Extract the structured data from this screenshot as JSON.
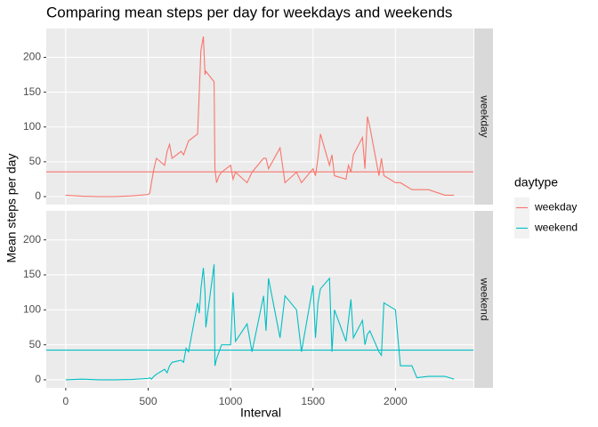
{
  "chart_data": {
    "type": "line",
    "title": "Comparing mean steps per day for weekdays and weekends",
    "x_label": "Interval",
    "y_label": "Mean steps per day",
    "legend_title": "daytype",
    "x": [
      0,
      100,
      200,
      300,
      400,
      500,
      510,
      520,
      535,
      550,
      600,
      615,
      630,
      645,
      700,
      715,
      730,
      745,
      800,
      810,
      820,
      835,
      845,
      850,
      900,
      905,
      915,
      930,
      945,
      1000,
      1015,
      1030,
      1100,
      1130,
      1200,
      1215,
      1230,
      1300,
      1330,
      1400,
      1430,
      1500,
      1515,
      1530,
      1545,
      1600,
      1615,
      1630,
      1700,
      1715,
      1730,
      1745,
      1800,
      1815,
      1830,
      1845,
      1900,
      1915,
      1930,
      2000,
      2030,
      2100,
      2130,
      2200,
      2300,
      2355
    ],
    "series": [
      {
        "name": "weekday",
        "color": "#f8766d",
        "hline": 35.6,
        "values": [
          2,
          0.5,
          0,
          0,
          1,
          3,
          5,
          20,
          40,
          55,
          45,
          65,
          75,
          55,
          65,
          60,
          70,
          80,
          90,
          150,
          210,
          230,
          175,
          180,
          165,
          40,
          20,
          30,
          35,
          45,
          25,
          35,
          20,
          35,
          55,
          55,
          40,
          70,
          20,
          35,
          20,
          40,
          30,
          55,
          90,
          45,
          60,
          30,
          25,
          45,
          35,
          60,
          85,
          40,
          115,
          100,
          30,
          55,
          30,
          20,
          20,
          10,
          10,
          10,
          2,
          2
        ]
      },
      {
        "name": "weekend",
        "color": "#00bfc4",
        "hline": 42.4,
        "values": [
          0,
          1,
          0,
          0,
          0.5,
          2,
          3,
          1,
          5,
          8,
          15,
          10,
          20,
          25,
          28,
          25,
          45,
          40,
          110,
          95,
          130,
          160,
          125,
          75,
          165,
          20,
          30,
          40,
          50,
          50,
          125,
          55,
          80,
          40,
          120,
          70,
          145,
          60,
          120,
          100,
          40,
          135,
          60,
          110,
          130,
          145,
          40,
          100,
          55,
          85,
          115,
          60,
          85,
          50,
          65,
          70,
          40,
          35,
          110,
          100,
          20,
          20,
          3,
          5,
          5,
          1
        ]
      }
    ],
    "xlim": [
      -118,
      2473
    ],
    "xticks": [
      0,
      500,
      1000,
      1500,
      2000
    ],
    "ylim": [
      -11.5,
      241.5
    ],
    "yticks": [
      0,
      50,
      100,
      150,
      200
    ],
    "grid": true,
    "legend": "right"
  }
}
